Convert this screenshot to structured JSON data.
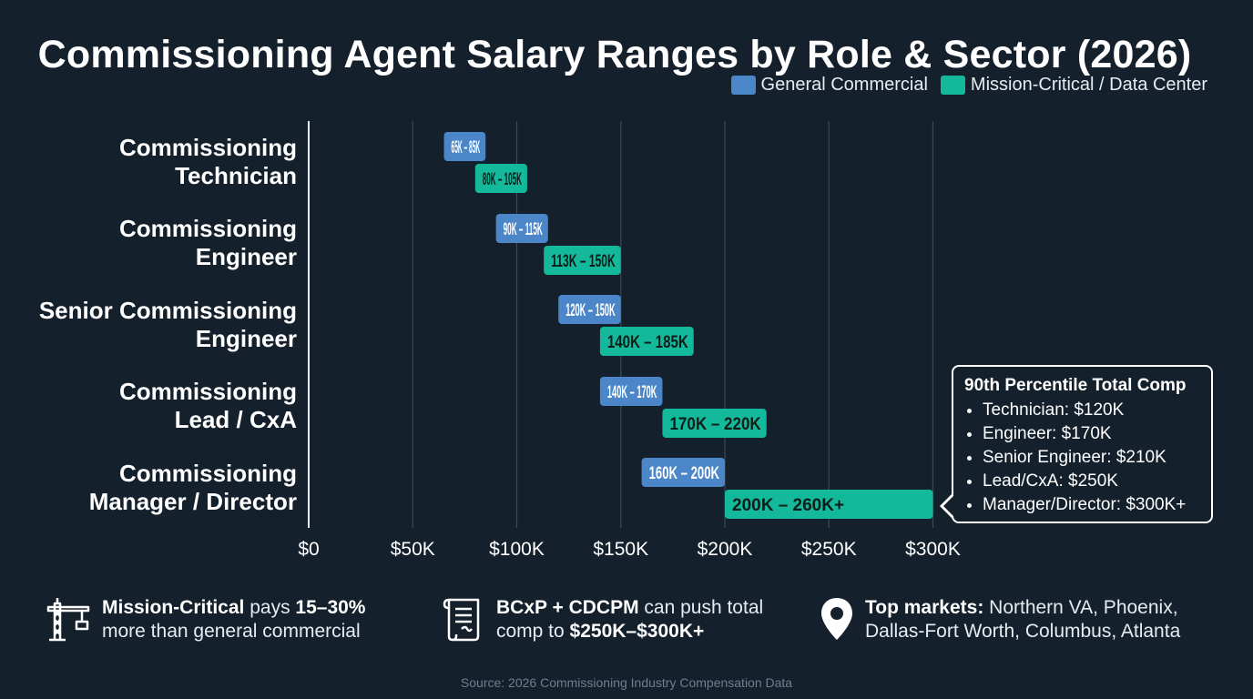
{
  "title": "Commissioning Agent Salary Ranges by Role & Sector (2026)",
  "legend": {
    "general": {
      "label": "General Commercial",
      "color": "#4a86c8"
    },
    "mission": {
      "label": "Mission-Critical / Data Center",
      "color": "#14b89a"
    }
  },
  "chart_data": {
    "type": "bar",
    "subtype": "horizontal range (floating bar)",
    "title": "Commissioning Agent Salary Ranges by Role & Sector (2026)",
    "categories": [
      "Commissioning Technician",
      "Commissioning Engineer",
      "Senior Commissioning Engineer",
      "Commissioning Lead / CxA",
      "Commissioning Manager / Director"
    ],
    "category_lines": [
      [
        "Commissioning",
        "Technician"
      ],
      [
        "Commissioning",
        "Engineer"
      ],
      [
        "Senior Commissioning",
        "Engineer"
      ],
      [
        "Commissioning",
        "Lead / CxA"
      ],
      [
        "Commissioning",
        "Manager / Director"
      ]
    ],
    "series": [
      {
        "name": "General Commercial",
        "color": "#4a86c8",
        "ranges": [
          [
            65,
            85
          ],
          [
            90,
            115
          ],
          [
            120,
            150
          ],
          [
            140,
            170
          ],
          [
            160,
            200
          ]
        ],
        "labels": [
          "65K – 85K",
          "90K – 115K",
          "120K – 150K",
          "140K – 170K",
          "160K – 200K"
        ]
      },
      {
        "name": "Mission-Critical / Data Center",
        "color": "#14b89a",
        "ranges": [
          [
            80,
            105
          ],
          [
            113,
            150
          ],
          [
            140,
            185
          ],
          [
            170,
            220
          ],
          [
            200,
            300
          ]
        ],
        "labels": [
          "80K – 105K",
          "113K – 150K",
          "140K – 185K",
          "170K – 220K",
          "200K – 260K+"
        ]
      }
    ],
    "x_unit": "thousand USD",
    "xlim": [
      0,
      300
    ],
    "xticks": [
      0,
      50,
      100,
      150,
      200,
      250,
      300
    ],
    "xtick_labels": [
      "$0",
      "$50K",
      "$100K",
      "$150K",
      "$200K",
      "$250K",
      "$300K"
    ],
    "grid": "vertical",
    "legend_position": "top-right"
  },
  "callout": {
    "title": "90th Percentile Total Comp",
    "items": [
      "Technician: $120K",
      "Engineer: $170K",
      "Senior Engineer: $210K",
      "Lead/CxA: $250K",
      "Manager/Director: $300K+"
    ]
  },
  "notes": [
    {
      "icon": "crane-icon",
      "bold1": "Mission-Critical",
      "text1": " pays ",
      "bold2": "15–30%",
      "text2": "more than general commercial"
    },
    {
      "icon": "certificate-scroll-icon",
      "bold1": "BCxP + CDCPM",
      "text1": " can push total",
      "text2a": "comp to ",
      "bold2": "$250K–$300K+"
    },
    {
      "icon": "location-pin-icon",
      "bold1": "Top markets:",
      "text1": " Northern VA, Phoenix,",
      "text2": "Dallas-Fort Worth, Columbus, Atlanta"
    }
  ],
  "source": "Source: 2026 Commissioning Industry Compensation Data"
}
